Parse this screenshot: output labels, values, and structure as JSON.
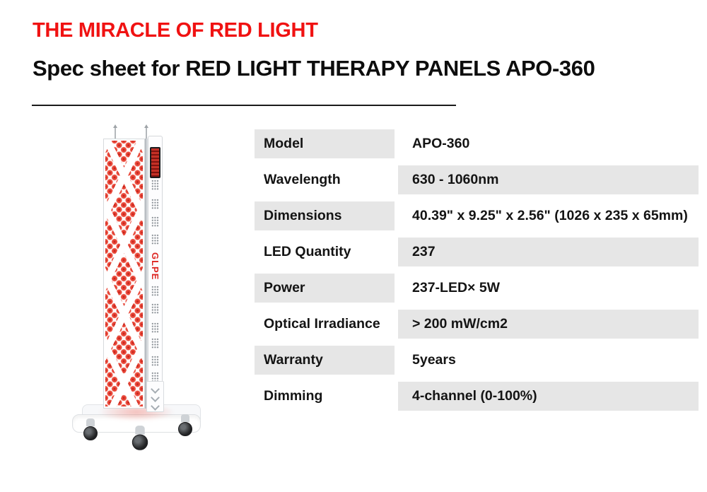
{
  "header": {
    "title": "THE MIRACLE OF RED LIGHT",
    "subtitle": "Spec sheet for RED LIGHT THERAPY PANELS APO-360"
  },
  "product": {
    "description": "Floor-standing red light therapy panel on rolling base",
    "logo": "GLPE"
  },
  "specs": {
    "rows": [
      {
        "label": "Model",
        "value": "APO-360"
      },
      {
        "label": "Wavelength",
        "value": "630 - 1060nm"
      },
      {
        "label": "Dimensions",
        "value": "40.39\" x 9.25\" x 2.56\" (1026 x 235 x 65mm)"
      },
      {
        "label": "LED Quantity",
        "value": "237"
      },
      {
        "label": "Power",
        "value": "237-LED× 5W"
      },
      {
        "label": "Optical Irradiance",
        "value": "> 200 mW/cm2"
      },
      {
        "label": "Warranty",
        "value": "5years"
      },
      {
        "label": "Dimming",
        "value": "4-channel (0-100%)"
      }
    ]
  },
  "colors": {
    "accent_red": "#f01212",
    "led_red": "#e84537",
    "row_shade": "#e6e6e6",
    "heading_black": "#0d0d0d"
  }
}
